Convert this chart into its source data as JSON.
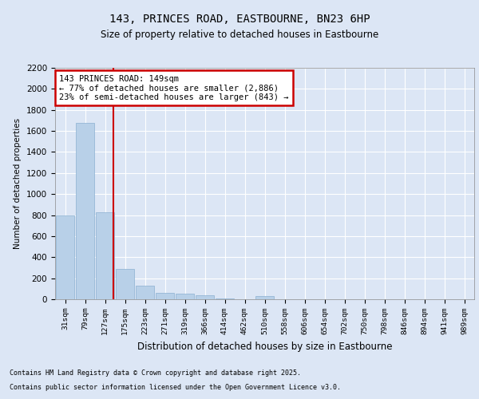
{
  "title1": "143, PRINCES ROAD, EASTBOURNE, BN23 6HP",
  "title2": "Size of property relative to detached houses in Eastbourne",
  "xlabel": "Distribution of detached houses by size in Eastbourne",
  "ylabel": "Number of detached properties",
  "categories": [
    "31sqm",
    "79sqm",
    "127sqm",
    "175sqm",
    "223sqm",
    "271sqm",
    "319sqm",
    "366sqm",
    "414sqm",
    "462sqm",
    "510sqm",
    "558sqm",
    "606sqm",
    "654sqm",
    "702sqm",
    "750sqm",
    "798sqm",
    "846sqm",
    "894sqm",
    "941sqm",
    "989sqm"
  ],
  "values": [
    800,
    1680,
    830,
    290,
    130,
    60,
    55,
    40,
    10,
    0,
    30,
    0,
    0,
    0,
    0,
    0,
    0,
    0,
    0,
    0,
    0
  ],
  "bar_color": "#b8d0e8",
  "bar_edge_color": "#8ab0d0",
  "vline_color": "#cc0000",
  "vline_x": 2.43,
  "annotation_text": "143 PRINCES ROAD: 149sqm\n← 77% of detached houses are smaller (2,886)\n23% of semi-detached houses are larger (843) →",
  "annotation_box_color": "#cc0000",
  "ylim": [
    0,
    2200
  ],
  "yticks": [
    0,
    200,
    400,
    600,
    800,
    1000,
    1200,
    1400,
    1600,
    1800,
    2000,
    2200
  ],
  "background_color": "#dce6f5",
  "plot_bg_color": "#dce6f5",
  "fig_bg_color": "#dce6f5",
  "grid_color": "#ffffff",
  "footer_line1": "Contains HM Land Registry data © Crown copyright and database right 2025.",
  "footer_line2": "Contains public sector information licensed under the Open Government Licence v3.0."
}
